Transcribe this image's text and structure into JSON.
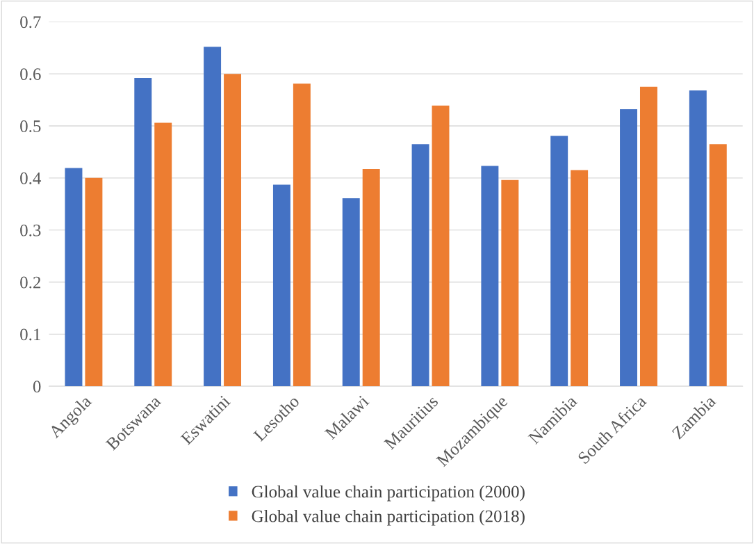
{
  "chart_data": {
    "type": "bar",
    "categories": [
      "Angola",
      "Botswana",
      "Eswatini",
      "Lesotho",
      "Malawi",
      "Mauritius",
      "Mozambique",
      "Namibia",
      "South Africa",
      "Zambia"
    ],
    "series": [
      {
        "name": "Global value chain participation (2000)",
        "color": "#4472c4",
        "values": [
          0.419,
          0.592,
          0.652,
          0.387,
          0.361,
          0.465,
          0.423,
          0.481,
          0.532,
          0.568
        ]
      },
      {
        "name": "Global value chain participation (2018)",
        "color": "#ed7d31",
        "values": [
          0.4,
          0.506,
          0.6,
          0.581,
          0.417,
          0.539,
          0.396,
          0.415,
          0.575,
          0.465
        ]
      }
    ],
    "ylim": [
      0,
      0.7
    ],
    "yticks": [
      0,
      0.1,
      0.2,
      0.3,
      0.4,
      0.5,
      0.6,
      0.7
    ],
    "grid": "y",
    "legend": "bottom"
  }
}
